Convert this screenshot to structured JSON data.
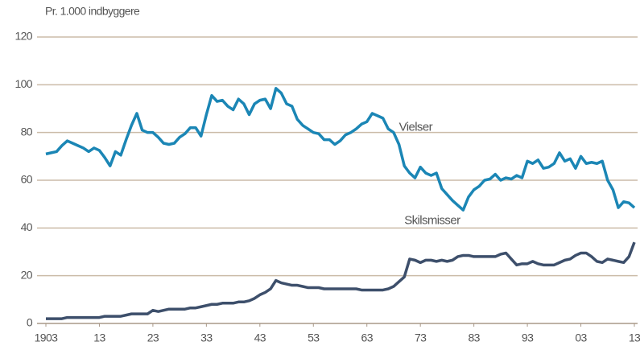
{
  "chart_data": {
    "type": "line",
    "y_label": "Pr. 1.000 indbyggere",
    "x": [
      1903,
      1904,
      1905,
      1906,
      1907,
      1908,
      1909,
      1910,
      1911,
      1912,
      1913,
      1914,
      1915,
      1916,
      1917,
      1918,
      1919,
      1920,
      1921,
      1922,
      1923,
      1924,
      1925,
      1926,
      1927,
      1928,
      1929,
      1930,
      1931,
      1932,
      1933,
      1934,
      1935,
      1936,
      1937,
      1938,
      1939,
      1940,
      1941,
      1942,
      1943,
      1944,
      1945,
      1946,
      1947,
      1948,
      1949,
      1950,
      1951,
      1952,
      1953,
      1954,
      1955,
      1956,
      1957,
      1958,
      1959,
      1960,
      1961,
      1962,
      1963,
      1964,
      1965,
      1966,
      1967,
      1968,
      1969,
      1970,
      1971,
      1972,
      1973,
      1974,
      1975,
      1976,
      1977,
      1978,
      1979,
      1980,
      1981,
      1982,
      1983,
      1984,
      1985,
      1986,
      1987,
      1988,
      1989,
      1990,
      1991,
      1992,
      1993,
      1994,
      1995,
      1996,
      1997,
      1998,
      1999,
      2000,
      2001,
      2002,
      2003,
      2004,
      2005,
      2006,
      2007,
      2008,
      2009,
      2010,
      2011,
      2012,
      2013
    ],
    "series": [
      {
        "name": "Vielser",
        "color": "#1b86b5",
        "values": [
          71,
          71.5,
          72,
          74.5,
          76.5,
          75.5,
          74.5,
          73.5,
          72,
          73.5,
          72.5,
          69.5,
          66,
          72,
          70.5,
          77,
          83,
          88,
          81,
          80,
          80,
          78,
          75.5,
          75,
          75.5,
          78,
          79.5,
          82,
          82,
          78.5,
          87.5,
          95.5,
          93,
          93.5,
          91,
          89.5,
          94,
          92,
          87.5,
          92,
          93.5,
          94,
          90,
          98.5,
          96.5,
          92,
          91,
          85.5,
          83,
          81.5,
          80,
          79.5,
          77,
          77,
          75,
          76.5,
          79,
          80,
          81.5,
          83.5,
          84.5,
          88,
          87,
          86,
          81.5,
          80,
          75,
          66,
          63,
          61,
          65.5,
          63,
          62,
          63,
          56.5,
          54,
          51.5,
          49.5,
          47.5,
          53,
          56,
          57.5,
          60,
          60.5,
          62.5,
          60,
          61,
          60.5,
          62,
          61,
          68,
          67,
          68.5,
          65,
          65.5,
          67,
          71.5,
          68,
          69,
          65,
          70,
          67,
          67.5,
          67,
          68,
          60,
          56,
          48.5,
          51,
          50.5,
          48.5
        ]
      },
      {
        "name": "Skilsmisser",
        "color": "#3d4f6b",
        "values": [
          2,
          2,
          2,
          2,
          2.5,
          2.5,
          2.5,
          2.5,
          2.5,
          2.5,
          2.5,
          3,
          3,
          3,
          3,
          3.5,
          4,
          4,
          4,
          4,
          5.5,
          5,
          5.5,
          6,
          6,
          6,
          6,
          6.5,
          6.5,
          7,
          7.5,
          8,
          8,
          8.5,
          8.5,
          8.5,
          9,
          9,
          9.5,
          10.5,
          12,
          13,
          14.5,
          18,
          17,
          16.5,
          16,
          16,
          15.5,
          15,
          15,
          15,
          14.5,
          14.5,
          14.5,
          14.5,
          14.5,
          14.5,
          14.5,
          14,
          14,
          14,
          14,
          14,
          14.5,
          15.5,
          17.5,
          19.5,
          27,
          26.5,
          25.5,
          26.5,
          26.5,
          26,
          26.5,
          26,
          26.5,
          28,
          28.5,
          28.5,
          28,
          28,
          28,
          28,
          28,
          29,
          29.5,
          27,
          24.5,
          25,
          25,
          26,
          25,
          24.5,
          24.5,
          24.5,
          25.5,
          26.5,
          27,
          28.5,
          29.5,
          29.5,
          28,
          26,
          25.5,
          27,
          26.5,
          26,
          25.5,
          28,
          34
        ]
      }
    ],
    "xlim": [
      1903,
      2013
    ],
    "xticks": [
      1903,
      {
        "value": 1913,
        "label": "13"
      },
      {
        "value": 1923,
        "label": "23"
      },
      {
        "value": 1933,
        "label": "33"
      },
      {
        "value": 1943,
        "label": "43"
      },
      {
        "value": 1953,
        "label": "53"
      },
      {
        "value": 1963,
        "label": "63"
      },
      {
        "value": 1973,
        "label": "73"
      },
      {
        "value": 1983,
        "label": "83"
      },
      {
        "value": 1993,
        "label": "93"
      },
      {
        "value": 2003,
        "label": "03"
      },
      {
        "value": 2013,
        "label": "13"
      }
    ],
    "ylim": [
      0,
      120
    ],
    "yticks": [
      0,
      20,
      40,
      60,
      80,
      100,
      120
    ],
    "grid": true,
    "annotations": [
      {
        "text": "Vielser",
        "x": 1969,
        "y": 82
      },
      {
        "text": "Skilsmisser",
        "x": 1970,
        "y": 43
      }
    ]
  }
}
